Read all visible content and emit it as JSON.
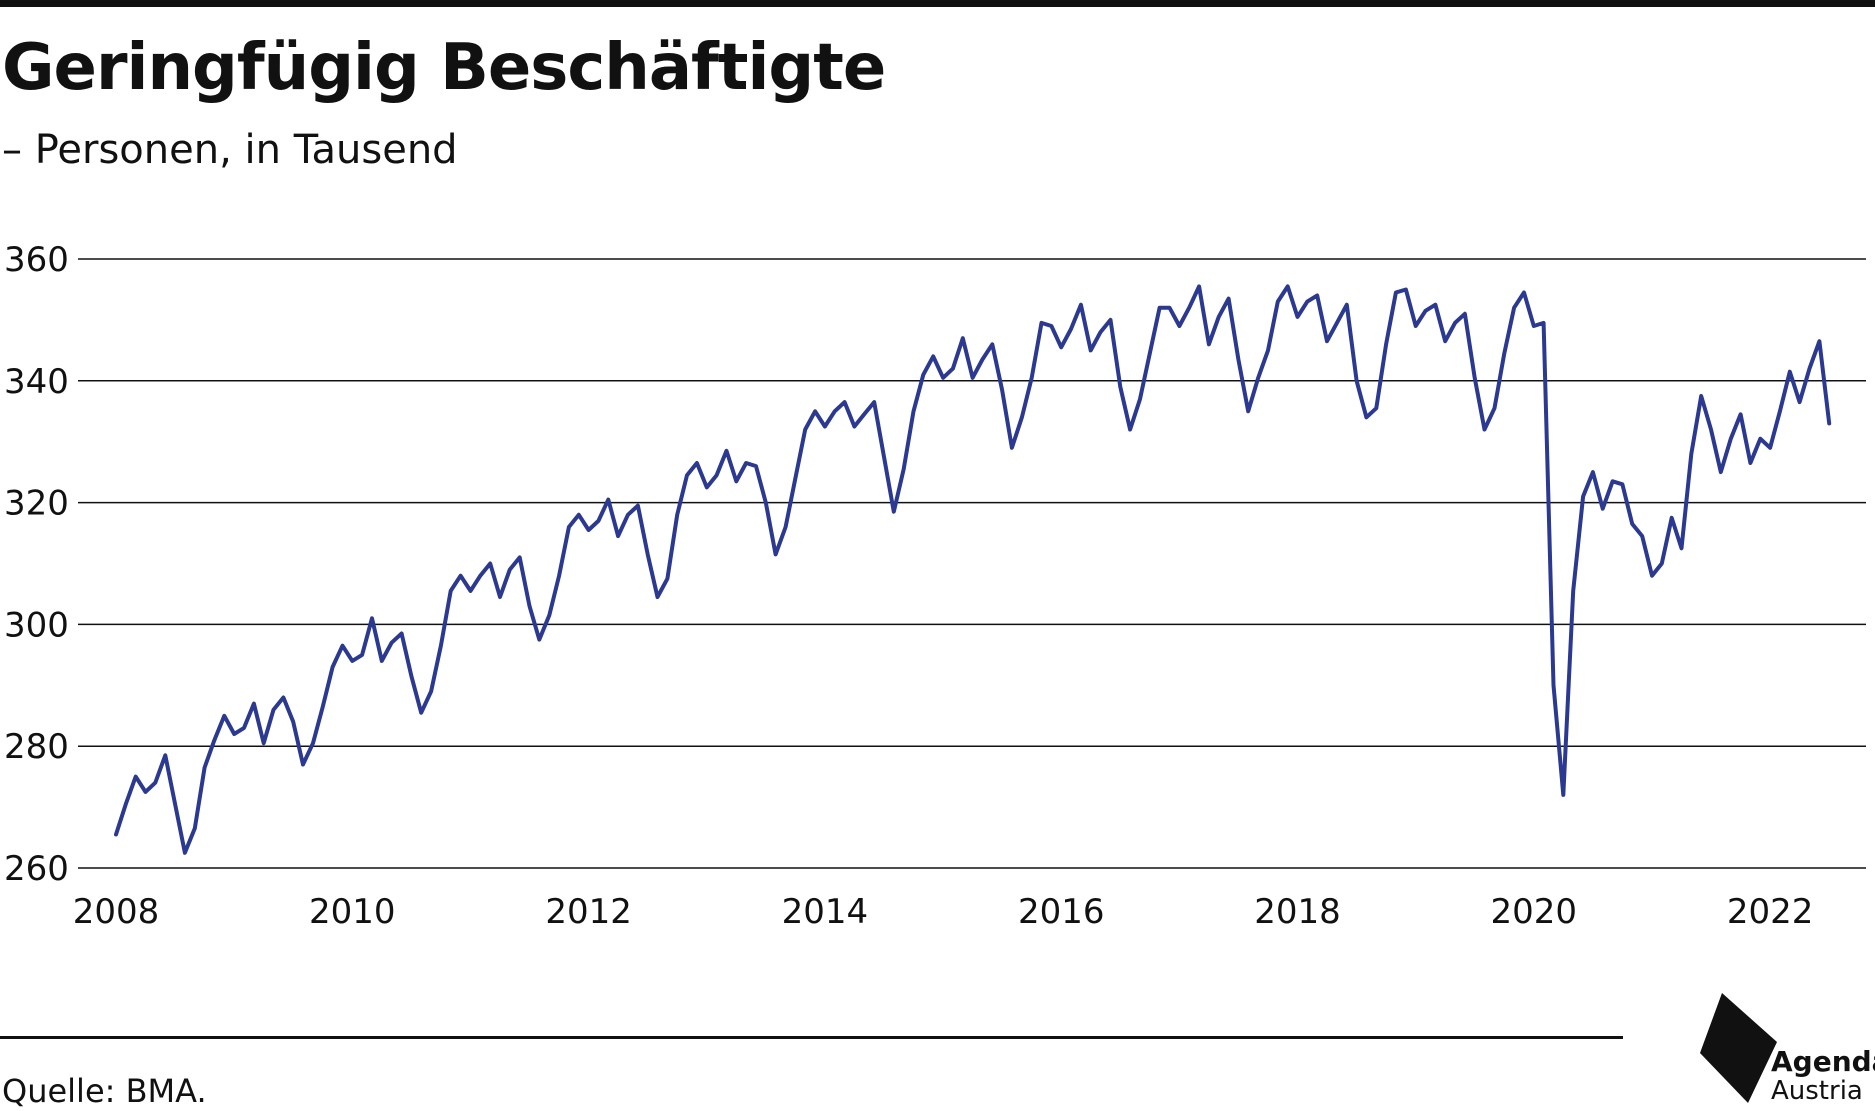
{
  "header": {
    "title": "Geringfügig Beschäftigte",
    "subtitle": "– Personen, in Tausend"
  },
  "footer": {
    "source": "Quelle: BMA.",
    "logo_line1": "Agenda",
    "logo_line2": "Austria"
  },
  "colors": {
    "line": "#2b3990",
    "grid": "#111111",
    "text": "#111111"
  },
  "chart_data": {
    "type": "line",
    "title": "Geringfügig Beschäftigte",
    "subtitle": "– Personen, in Tausend",
    "xlabel": "",
    "ylabel": "",
    "xlim": [
      2008,
      2022.6
    ],
    "ylim": [
      260,
      360
    ],
    "yticks": [
      260,
      280,
      300,
      320,
      340,
      360
    ],
    "xticks": [
      2008,
      2010,
      2012,
      2014,
      2016,
      2018,
      2020,
      2022
    ],
    "grid": "horizontal",
    "legend": "none",
    "series": [
      {
        "x": [
          2008.0,
          2008.083,
          2008.167,
          2008.25,
          2008.333,
          2008.417,
          2008.5,
          2008.583,
          2008.667,
          2008.75,
          2008.833,
          2008.917,
          2009.0,
          2009.083,
          2009.167,
          2009.25,
          2009.333,
          2009.417,
          2009.5,
          2009.583,
          2009.667,
          2009.75,
          2009.833,
          2009.917,
          2010.0,
          2010.083,
          2010.167,
          2010.25,
          2010.333,
          2010.417,
          2010.5,
          2010.583,
          2010.667,
          2010.75,
          2010.833,
          2010.917,
          2011.0,
          2011.083,
          2011.167,
          2011.25,
          2011.333,
          2011.417,
          2011.5,
          2011.583,
          2011.667,
          2011.75,
          2011.833,
          2011.917,
          2012.0,
          2012.083,
          2012.167,
          2012.25,
          2012.333,
          2012.417,
          2012.5,
          2012.583,
          2012.667,
          2012.75,
          2012.833,
          2012.917,
          2013.0,
          2013.083,
          2013.167,
          2013.25,
          2013.333,
          2013.417,
          2013.5,
          2013.583,
          2013.667,
          2013.75,
          2013.833,
          2013.917,
          2014.0,
          2014.083,
          2014.167,
          2014.25,
          2014.333,
          2014.417,
          2014.5,
          2014.583,
          2014.667,
          2014.75,
          2014.833,
          2014.917,
          2015.0,
          2015.083,
          2015.167,
          2015.25,
          2015.333,
          2015.417,
          2015.5,
          2015.583,
          2015.667,
          2015.75,
          2015.833,
          2015.917,
          2016.0,
          2016.083,
          2016.167,
          2016.25,
          2016.333,
          2016.417,
          2016.5,
          2016.583,
          2016.667,
          2016.75,
          2016.833,
          2016.917,
          2017.0,
          2017.083,
          2017.167,
          2017.25,
          2017.333,
          2017.417,
          2017.5,
          2017.583,
          2017.667,
          2017.75,
          2017.833,
          2017.917,
          2018.0,
          2018.083,
          2018.167,
          2018.25,
          2018.333,
          2018.417,
          2018.5,
          2018.583,
          2018.667,
          2018.75,
          2018.833,
          2018.917,
          2019.0,
          2019.083,
          2019.167,
          2019.25,
          2019.333,
          2019.417,
          2019.5,
          2019.583,
          2019.667,
          2019.75,
          2019.833,
          2019.917,
          2020.0,
          2020.083,
          2020.167,
          2020.25,
          2020.333,
          2020.417,
          2020.5,
          2020.583,
          2020.667,
          2020.75,
          2020.833,
          2020.917,
          2021.0,
          2021.083,
          2021.167,
          2021.25,
          2021.333,
          2021.417,
          2021.5,
          2021.583,
          2021.667,
          2021.75,
          2021.833,
          2021.917,
          2022.0,
          2022.083,
          2022.167,
          2022.25,
          2022.333,
          2022.417,
          2022.5
        ],
        "values": [
          265.5,
          270.5,
          275.0,
          272.5,
          274.0,
          278.5,
          270.5,
          262.5,
          266.5,
          276.5,
          281.0,
          285.0,
          282.0,
          283.0,
          287.0,
          280.5,
          286.0,
          288.0,
          284.0,
          277.0,
          280.5,
          286.5,
          293.0,
          296.5,
          294.0,
          295.0,
          301.0,
          294.0,
          297.0,
          298.5,
          291.5,
          285.5,
          289.0,
          296.5,
          305.5,
          308.0,
          305.5,
          308.0,
          310.0,
          304.5,
          309.0,
          311.0,
          303.0,
          297.5,
          301.5,
          308.0,
          316.0,
          318.0,
          315.5,
          317.0,
          320.5,
          314.5,
          318.0,
          319.5,
          311.5,
          304.5,
          307.5,
          318.0,
          324.5,
          326.5,
          322.5,
          324.5,
          328.5,
          323.5,
          326.5,
          326.0,
          320.0,
          311.5,
          316.0,
          324.0,
          332.0,
          335.0,
          332.5,
          335.0,
          336.5,
          332.5,
          334.5,
          336.5,
          327.5,
          318.5,
          325.5,
          335.0,
          341.0,
          344.0,
          340.5,
          342.0,
          347.0,
          340.5,
          343.5,
          346.0,
          338.5,
          329.0,
          334.0,
          340.5,
          349.5,
          349.0,
          345.5,
          348.5,
          352.5,
          345.0,
          348.0,
          350.0,
          339.0,
          332.0,
          337.0,
          344.5,
          352.0,
          352.0,
          349.0,
          352.0,
          355.5,
          346.0,
          350.5,
          353.5,
          343.5,
          335.0,
          340.5,
          345.0,
          353.0,
          355.5,
          350.5,
          353.0,
          354.0,
          346.5,
          349.5,
          352.5,
          340.0,
          334.0,
          335.5,
          346.0,
          354.5,
          355.0,
          349.0,
          351.5,
          352.5,
          346.5,
          349.5,
          351.0,
          340.5,
          332.0,
          335.5,
          344.5,
          352.0,
          354.5,
          349.0,
          349.5,
          290.0,
          272.0,
          305.5,
          321.0,
          325.0,
          319.0,
          323.5,
          323.0,
          316.5,
          314.5,
          308.0,
          310.0,
          317.5,
          312.5,
          328.0,
          337.5,
          332.0,
          325.0,
          330.5,
          334.5,
          326.5,
          330.5,
          329.0,
          335.0,
          341.5,
          336.5,
          342.0,
          346.5,
          333.0
        ]
      }
    ]
  }
}
